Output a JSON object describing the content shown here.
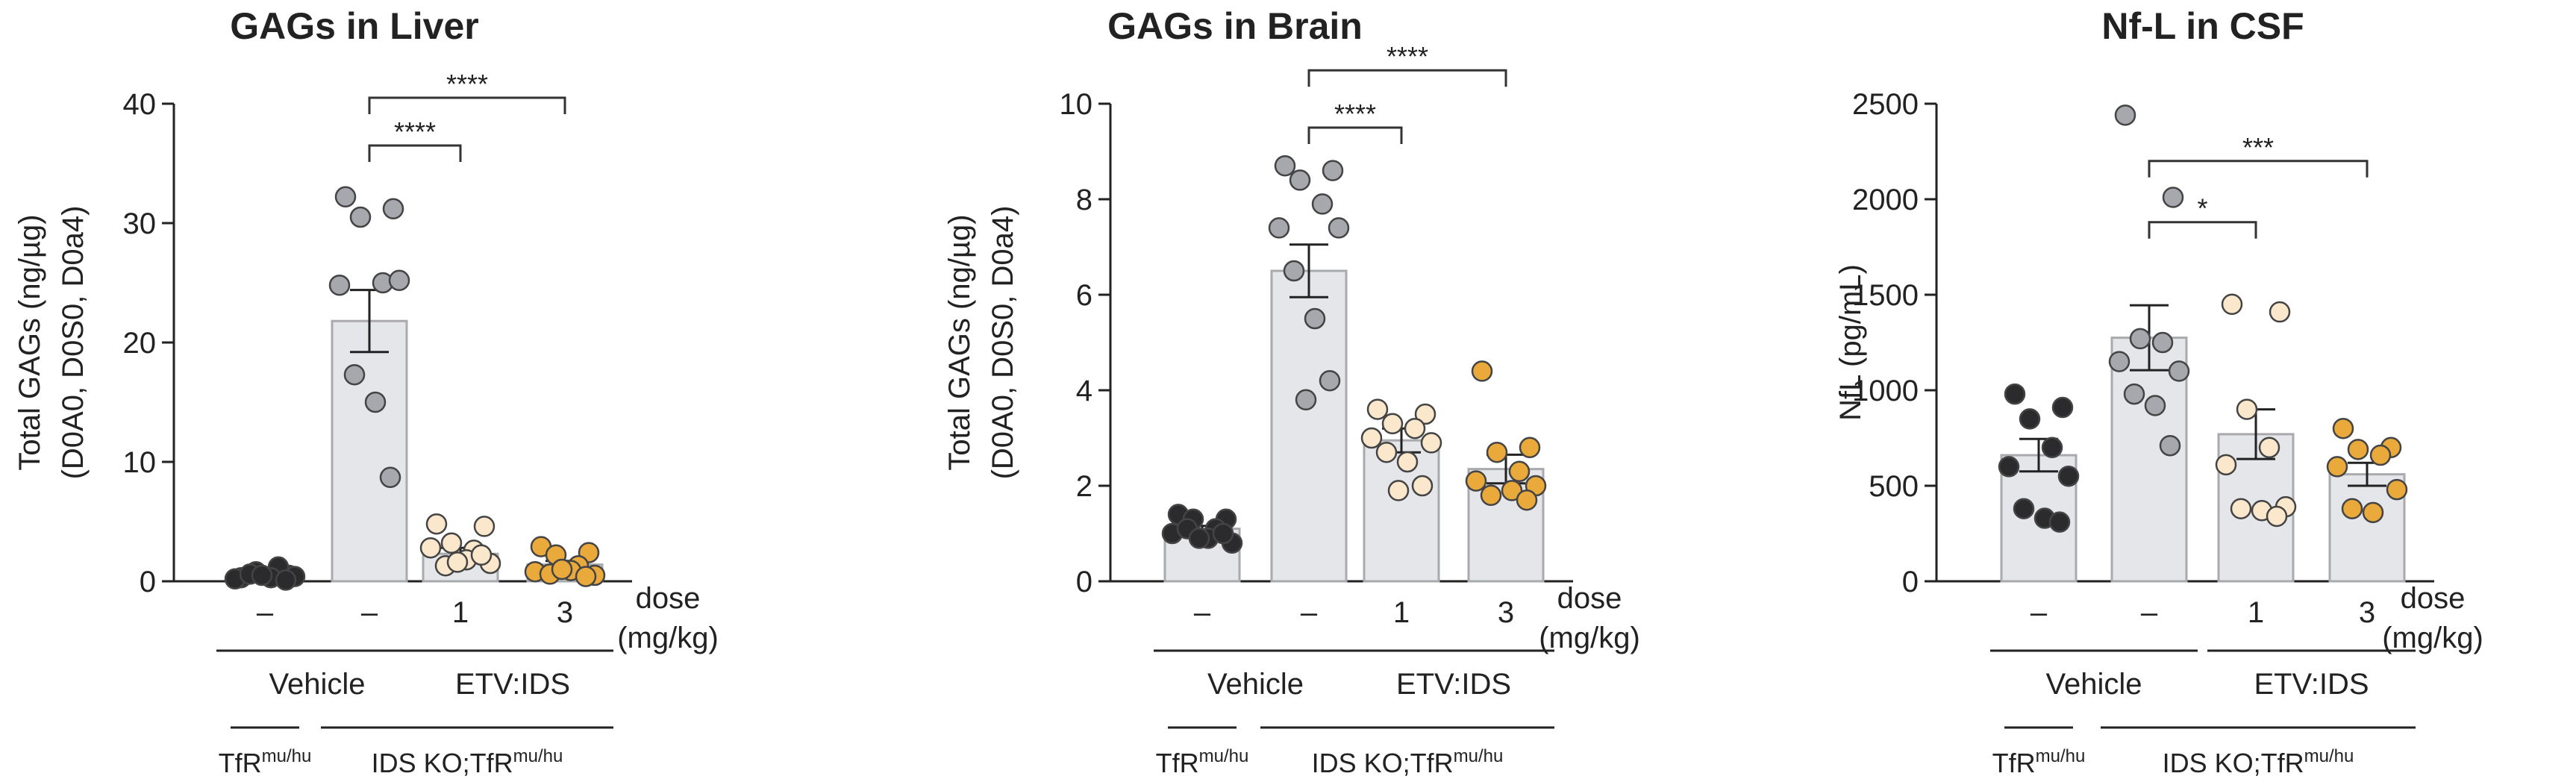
{
  "style": {
    "bar_fill": "#e5e6ea",
    "bar_stroke": "#a9aaae",
    "axis_color": "#222222",
    "group_colors": [
      "#2b2b2d",
      "#a6a8ad",
      "#fbe8cc",
      "#e9a93b"
    ],
    "marker_stroke": "#444444"
  },
  "xaxis": {
    "doses": [
      "–",
      "–",
      "1",
      "3"
    ],
    "dose_label": "dose",
    "dose_unit": "(mg/kg)",
    "treatment_labels": [
      "Vehicle",
      "ETV:IDS"
    ],
    "genotype_labels": [
      {
        "main": "TfR",
        "sup": "mu/hu"
      },
      {
        "main": "IDS KO;TfR",
        "sup": "mu/hu"
      }
    ]
  },
  "chart_data": [
    {
      "type": "bar",
      "title": "GAGs in Liver",
      "ylabel_lines": [
        "Total GAGs (ng/µg)",
        "(D0A0, D0S0, D0a4)"
      ],
      "ylim": [
        0,
        40
      ],
      "yticks": [
        0,
        10,
        20,
        30,
        40
      ],
      "series": [
        {
          "mean": 0.5,
          "sem": 0.15,
          "points": [
            0.3,
            0.5,
            0.8,
            1.2,
            0.2,
            0.4,
            0.6,
            0.3,
            0.1,
            0.5
          ]
        },
        {
          "mean": 21.8,
          "sem": 2.6,
          "points": [
            32.2,
            31.2,
            30.5,
            25.0,
            24.8,
            25.2,
            17.3,
            15.0,
            8.7
          ]
        },
        {
          "mean": 2.3,
          "sem": 0.5,
          "points": [
            4.8,
            4.6,
            3.2,
            2.6,
            2.8,
            1.5,
            1.3,
            1.8,
            2.2,
            1.6
          ]
        },
        {
          "mean": 1.4,
          "sem": 0.3,
          "points": [
            2.9,
            2.4,
            2.2,
            1.3,
            0.8,
            0.5,
            0.6,
            0.9,
            0.4,
            1.0
          ]
        }
      ],
      "brackets": [
        {
          "from": 1,
          "to": 3,
          "y": 40.5,
          "label": "****"
        },
        {
          "from": 1,
          "to": 2,
          "y": 36.5,
          "label": "****"
        }
      ]
    },
    {
      "type": "bar",
      "title": "GAGs in Brain",
      "ylabel_lines": [
        "Total GAGs (ng/µg)",
        "(D0A0, D0S0, D0a4)"
      ],
      "ylim": [
        0,
        10
      ],
      "yticks": [
        0,
        2,
        4,
        6,
        8,
        10
      ],
      "series": [
        {
          "mean": 1.1,
          "sem": 0.06,
          "points": [
            1.4,
            1.3,
            1.3,
            1.1,
            1.0,
            0.8,
            1.1,
            0.9,
            1.0,
            0.9
          ]
        },
        {
          "mean": 6.5,
          "sem": 0.55,
          "points": [
            8.7,
            8.6,
            8.4,
            7.9,
            7.4,
            7.4,
            6.5,
            5.5,
            4.2,
            3.8
          ]
        },
        {
          "mean": 2.95,
          "sem": 0.25,
          "points": [
            3.6,
            3.5,
            3.3,
            3.2,
            3.0,
            2.9,
            2.7,
            2.5,
            2.0,
            1.9
          ]
        },
        {
          "mean": 2.35,
          "sem": 0.3,
          "points": [
            4.4,
            2.8,
            2.7,
            2.3,
            2.1,
            2.0,
            1.8,
            1.9,
            1.7
          ]
        }
      ],
      "brackets": [
        {
          "from": 1,
          "to": 3,
          "y": 10.7,
          "label": "****"
        },
        {
          "from": 1,
          "to": 2,
          "y": 9.5,
          "label": "****"
        }
      ]
    },
    {
      "type": "bar",
      "title": "Nf-L in CSF",
      "ylabel_lines": [
        "NfL (pg/mL)"
      ],
      "ylim": [
        0,
        2500
      ],
      "yticks": [
        0,
        500,
        1000,
        1500,
        2000,
        2500
      ],
      "series": [
        {
          "mean": 660,
          "sem": 85,
          "points": [
            980,
            910,
            850,
            700,
            600,
            550,
            380,
            330,
            310
          ]
        },
        {
          "mean": 1275,
          "sem": 170,
          "points": [
            2440,
            2010,
            1270,
            1250,
            1150,
            1100,
            980,
            920,
            710
          ]
        },
        {
          "mean": 770,
          "sem": 130,
          "points": [
            1450,
            1410,
            900,
            700,
            610,
            390,
            380,
            370,
            340
          ]
        },
        {
          "mean": 560,
          "sem": 60,
          "points": [
            800,
            700,
            690,
            660,
            600,
            480,
            380,
            360
          ]
        }
      ],
      "brackets": [
        {
          "from": 1,
          "to": 3,
          "y": 2200,
          "label": "***"
        },
        {
          "from": 1,
          "to": 2,
          "y": 1880,
          "label": "*"
        }
      ]
    }
  ]
}
